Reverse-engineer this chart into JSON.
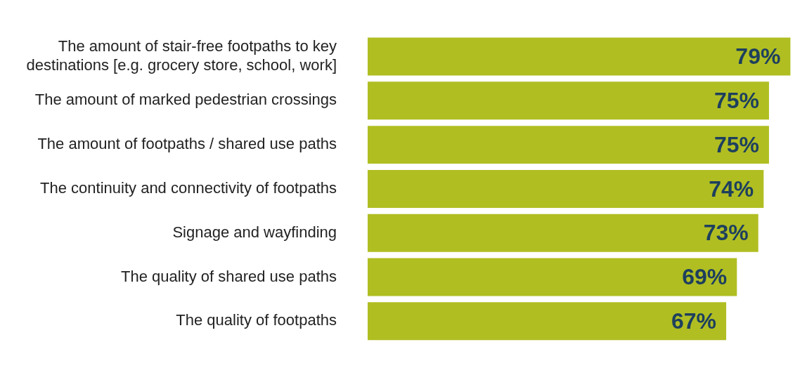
{
  "chart_data": {
    "type": "bar",
    "orientation": "horizontal",
    "categories": [
      "The amount of stair-free footpaths to key destinations [e.g. grocery store, school, work]",
      "The amount of marked pedestrian crossings",
      "The amount of footpaths / shared use paths",
      "The continuity and connectivity of footpaths",
      "Signage and wayfinding",
      "The quality of shared use paths",
      "The quality of footpaths"
    ],
    "values": [
      79,
      75,
      75,
      74,
      73,
      69,
      67
    ],
    "value_labels": [
      "79%",
      "75%",
      "75%",
      "74%",
      "73%",
      "69%",
      "67%"
    ],
    "color": "#b0be22",
    "legend": false,
    "tick_labels": "y"
  }
}
